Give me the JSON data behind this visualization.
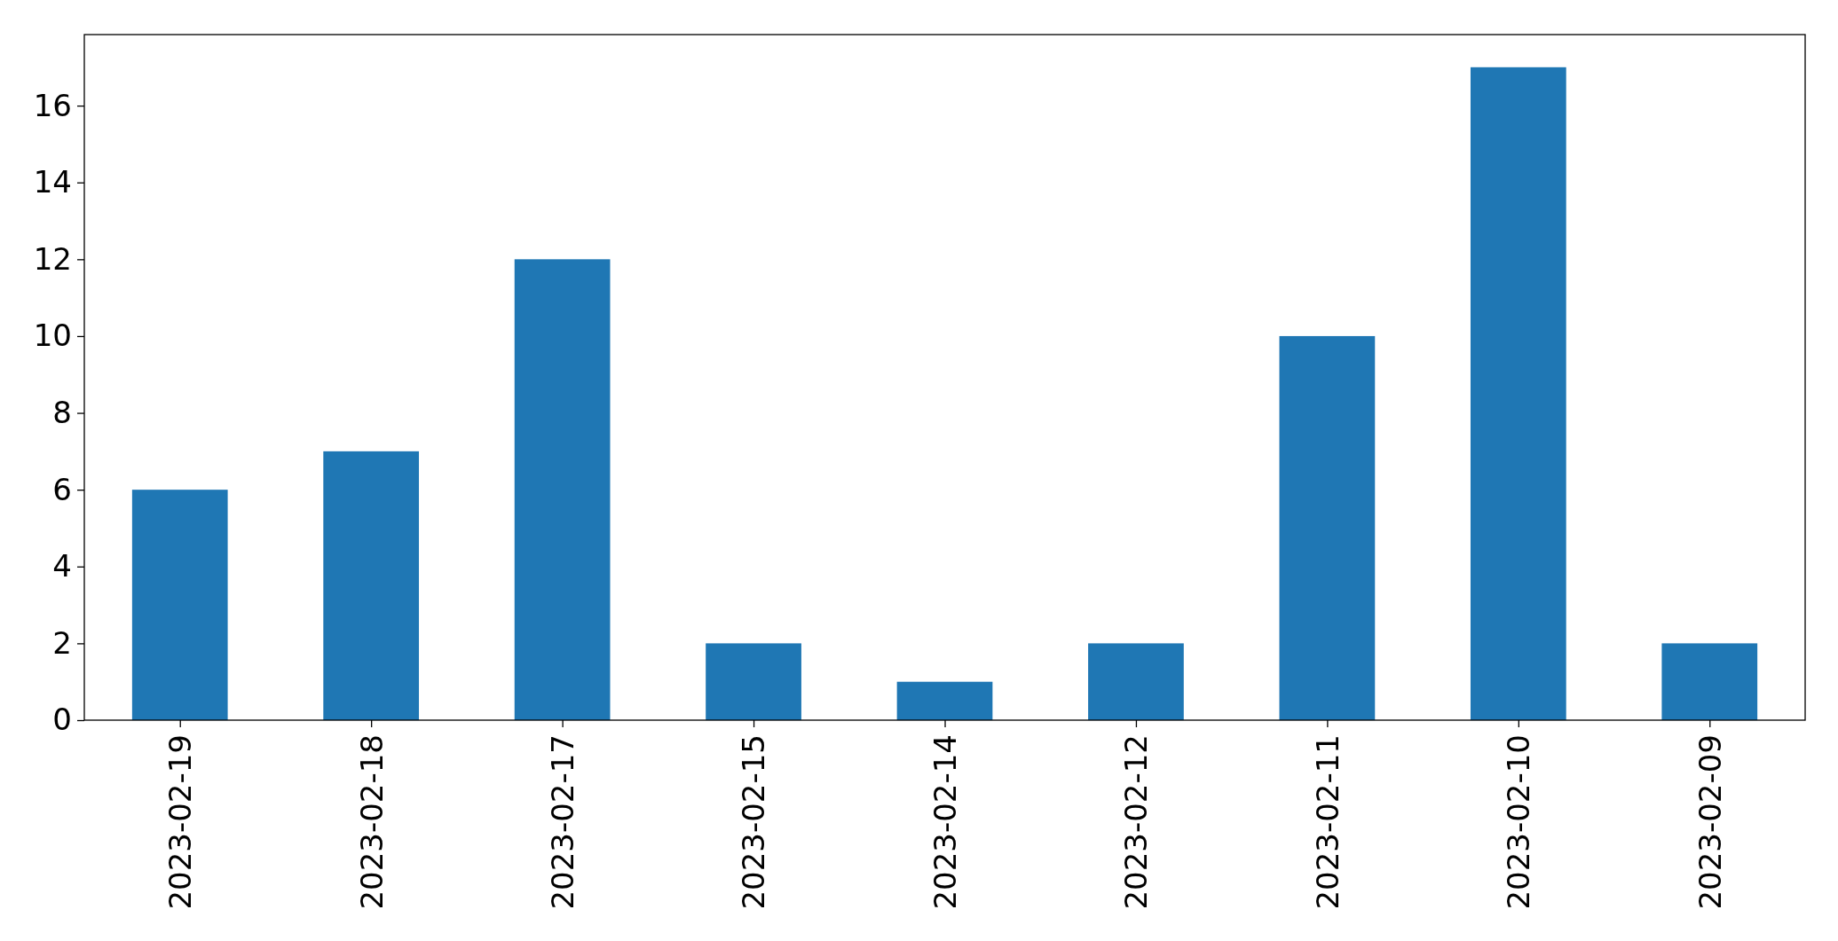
{
  "chart_data": {
    "type": "bar",
    "categories": [
      "2023-02-19",
      "2023-02-18",
      "2023-02-17",
      "2023-02-15",
      "2023-02-14",
      "2023-02-12",
      "2023-02-11",
      "2023-02-10",
      "2023-02-09"
    ],
    "values": [
      6,
      7,
      12,
      2,
      1,
      2,
      10,
      17,
      2
    ],
    "color": "#1f77b4",
    "ylim": [
      0,
      17.85
    ],
    "yticks": [
      0,
      2,
      4,
      6,
      8,
      10,
      12,
      14,
      16
    ]
  }
}
